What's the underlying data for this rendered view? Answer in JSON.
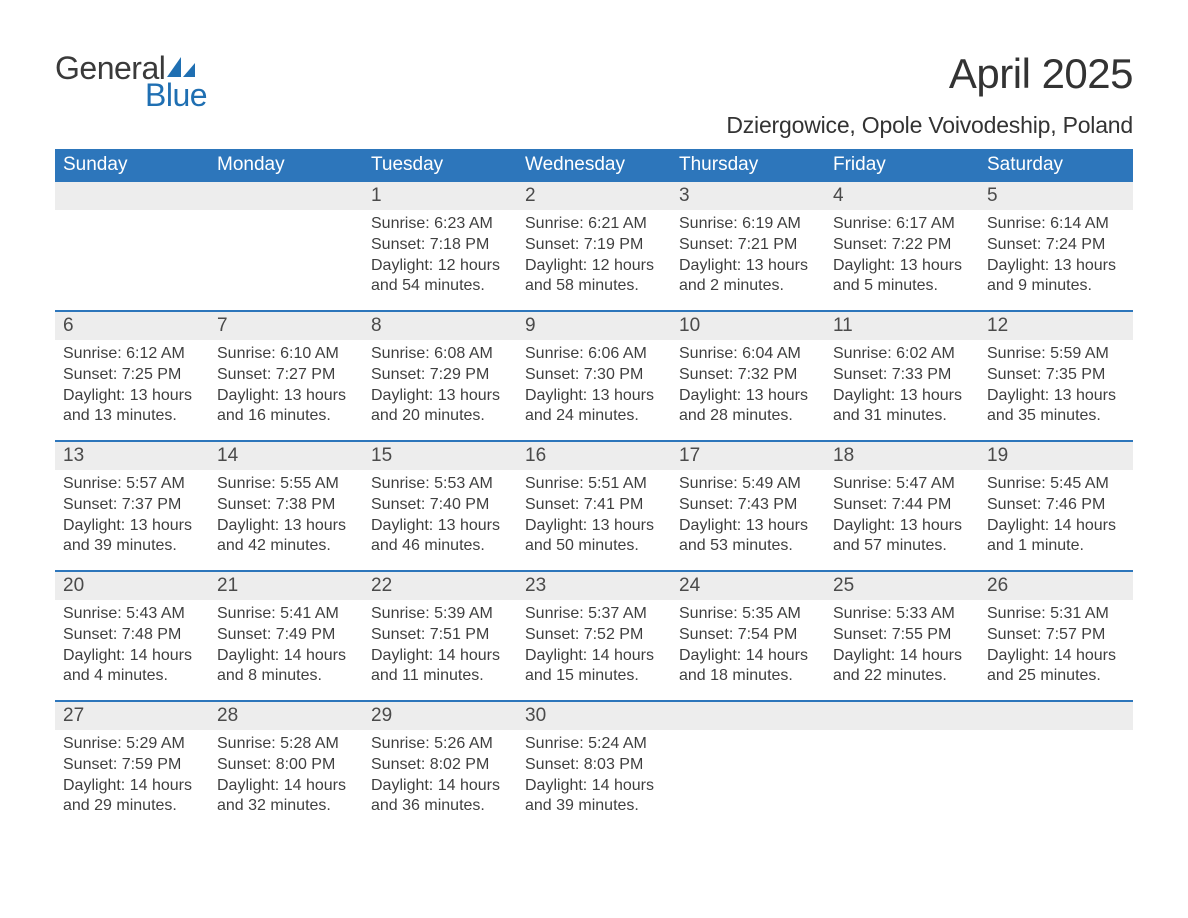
{
  "logo": {
    "general": "General",
    "blue": "Blue",
    "icon_color": "#1f6fb2"
  },
  "title": "April 2025",
  "location": "Dziergowice, Opole Voivodeship, Poland",
  "colors": {
    "header_bg": "#2d76bb",
    "header_text": "#ffffff",
    "daynum_bg": "#ededed",
    "week_border": "#2d76bb",
    "body_text": "#3f3f3f",
    "title_text": "#333333",
    "logo_general": "#3a3a3a",
    "logo_blue": "#1f6fb2",
    "background": "#ffffff"
  },
  "typography": {
    "title_fontsize": 42,
    "location_fontsize": 23,
    "weekday_fontsize": 19,
    "daynum_fontsize": 19,
    "content_fontsize": 16,
    "logo_fontsize": 32,
    "font_family": "Arial"
  },
  "weekdays": [
    "Sunday",
    "Monday",
    "Tuesday",
    "Wednesday",
    "Thursday",
    "Friday",
    "Saturday"
  ],
  "weeks": [
    [
      {
        "num": "",
        "sunrise": "",
        "sunset": "",
        "daylight": ""
      },
      {
        "num": "",
        "sunrise": "",
        "sunset": "",
        "daylight": ""
      },
      {
        "num": "1",
        "sunrise": "Sunrise: 6:23 AM",
        "sunset": "Sunset: 7:18 PM",
        "daylight": "Daylight: 12 hours and 54 minutes."
      },
      {
        "num": "2",
        "sunrise": "Sunrise: 6:21 AM",
        "sunset": "Sunset: 7:19 PM",
        "daylight": "Daylight: 12 hours and 58 minutes."
      },
      {
        "num": "3",
        "sunrise": "Sunrise: 6:19 AM",
        "sunset": "Sunset: 7:21 PM",
        "daylight": "Daylight: 13 hours and 2 minutes."
      },
      {
        "num": "4",
        "sunrise": "Sunrise: 6:17 AM",
        "sunset": "Sunset: 7:22 PM",
        "daylight": "Daylight: 13 hours and 5 minutes."
      },
      {
        "num": "5",
        "sunrise": "Sunrise: 6:14 AM",
        "sunset": "Sunset: 7:24 PM",
        "daylight": "Daylight: 13 hours and 9 minutes."
      }
    ],
    [
      {
        "num": "6",
        "sunrise": "Sunrise: 6:12 AM",
        "sunset": "Sunset: 7:25 PM",
        "daylight": "Daylight: 13 hours and 13 minutes."
      },
      {
        "num": "7",
        "sunrise": "Sunrise: 6:10 AM",
        "sunset": "Sunset: 7:27 PM",
        "daylight": "Daylight: 13 hours and 16 minutes."
      },
      {
        "num": "8",
        "sunrise": "Sunrise: 6:08 AM",
        "sunset": "Sunset: 7:29 PM",
        "daylight": "Daylight: 13 hours and 20 minutes."
      },
      {
        "num": "9",
        "sunrise": "Sunrise: 6:06 AM",
        "sunset": "Sunset: 7:30 PM",
        "daylight": "Daylight: 13 hours and 24 minutes."
      },
      {
        "num": "10",
        "sunrise": "Sunrise: 6:04 AM",
        "sunset": "Sunset: 7:32 PM",
        "daylight": "Daylight: 13 hours and 28 minutes."
      },
      {
        "num": "11",
        "sunrise": "Sunrise: 6:02 AM",
        "sunset": "Sunset: 7:33 PM",
        "daylight": "Daylight: 13 hours and 31 minutes."
      },
      {
        "num": "12",
        "sunrise": "Sunrise: 5:59 AM",
        "sunset": "Sunset: 7:35 PM",
        "daylight": "Daylight: 13 hours and 35 minutes."
      }
    ],
    [
      {
        "num": "13",
        "sunrise": "Sunrise: 5:57 AM",
        "sunset": "Sunset: 7:37 PM",
        "daylight": "Daylight: 13 hours and 39 minutes."
      },
      {
        "num": "14",
        "sunrise": "Sunrise: 5:55 AM",
        "sunset": "Sunset: 7:38 PM",
        "daylight": "Daylight: 13 hours and 42 minutes."
      },
      {
        "num": "15",
        "sunrise": "Sunrise: 5:53 AM",
        "sunset": "Sunset: 7:40 PM",
        "daylight": "Daylight: 13 hours and 46 minutes."
      },
      {
        "num": "16",
        "sunrise": "Sunrise: 5:51 AM",
        "sunset": "Sunset: 7:41 PM",
        "daylight": "Daylight: 13 hours and 50 minutes."
      },
      {
        "num": "17",
        "sunrise": "Sunrise: 5:49 AM",
        "sunset": "Sunset: 7:43 PM",
        "daylight": "Daylight: 13 hours and 53 minutes."
      },
      {
        "num": "18",
        "sunrise": "Sunrise: 5:47 AM",
        "sunset": "Sunset: 7:44 PM",
        "daylight": "Daylight: 13 hours and 57 minutes."
      },
      {
        "num": "19",
        "sunrise": "Sunrise: 5:45 AM",
        "sunset": "Sunset: 7:46 PM",
        "daylight": "Daylight: 14 hours and 1 minute."
      }
    ],
    [
      {
        "num": "20",
        "sunrise": "Sunrise: 5:43 AM",
        "sunset": "Sunset: 7:48 PM",
        "daylight": "Daylight: 14 hours and 4 minutes."
      },
      {
        "num": "21",
        "sunrise": "Sunrise: 5:41 AM",
        "sunset": "Sunset: 7:49 PM",
        "daylight": "Daylight: 14 hours and 8 minutes."
      },
      {
        "num": "22",
        "sunrise": "Sunrise: 5:39 AM",
        "sunset": "Sunset: 7:51 PM",
        "daylight": "Daylight: 14 hours and 11 minutes."
      },
      {
        "num": "23",
        "sunrise": "Sunrise: 5:37 AM",
        "sunset": "Sunset: 7:52 PM",
        "daylight": "Daylight: 14 hours and 15 minutes."
      },
      {
        "num": "24",
        "sunrise": "Sunrise: 5:35 AM",
        "sunset": "Sunset: 7:54 PM",
        "daylight": "Daylight: 14 hours and 18 minutes."
      },
      {
        "num": "25",
        "sunrise": "Sunrise: 5:33 AM",
        "sunset": "Sunset: 7:55 PM",
        "daylight": "Daylight: 14 hours and 22 minutes."
      },
      {
        "num": "26",
        "sunrise": "Sunrise: 5:31 AM",
        "sunset": "Sunset: 7:57 PM",
        "daylight": "Daylight: 14 hours and 25 minutes."
      }
    ],
    [
      {
        "num": "27",
        "sunrise": "Sunrise: 5:29 AM",
        "sunset": "Sunset: 7:59 PM",
        "daylight": "Daylight: 14 hours and 29 minutes."
      },
      {
        "num": "28",
        "sunrise": "Sunrise: 5:28 AM",
        "sunset": "Sunset: 8:00 PM",
        "daylight": "Daylight: 14 hours and 32 minutes."
      },
      {
        "num": "29",
        "sunrise": "Sunrise: 5:26 AM",
        "sunset": "Sunset: 8:02 PM",
        "daylight": "Daylight: 14 hours and 36 minutes."
      },
      {
        "num": "30",
        "sunrise": "Sunrise: 5:24 AM",
        "sunset": "Sunset: 8:03 PM",
        "daylight": "Daylight: 14 hours and 39 minutes."
      },
      {
        "num": "",
        "sunrise": "",
        "sunset": "",
        "daylight": ""
      },
      {
        "num": "",
        "sunrise": "",
        "sunset": "",
        "daylight": ""
      },
      {
        "num": "",
        "sunrise": "",
        "sunset": "",
        "daylight": ""
      }
    ]
  ]
}
